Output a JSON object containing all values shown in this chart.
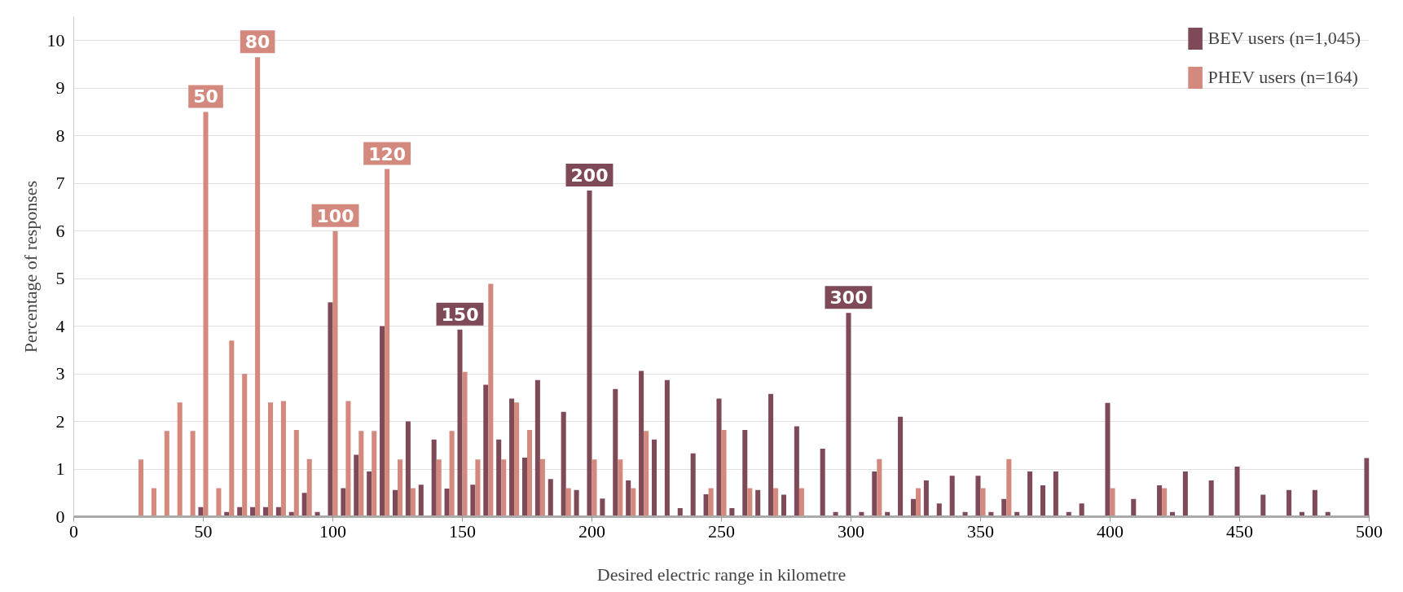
{
  "chart_data": {
    "type": "bar",
    "xlabel": "Desired electric range in kilometre",
    "ylabel": "Percentage of responses",
    "xlim": [
      0,
      500
    ],
    "xticks": [
      0,
      50,
      100,
      150,
      200,
      250,
      300,
      350,
      400,
      450,
      500
    ],
    "ylim": [
      0,
      10.5
    ],
    "yticks": [
      0,
      1,
      2,
      3,
      4,
      5,
      6,
      7,
      8,
      9,
      10
    ],
    "grid": "y",
    "legend": "top right",
    "series": [
      {
        "name": "BEV users (n=1,045)",
        "color": "#7f4a57",
        "x": [
          50,
          60,
          65,
          70,
          75,
          80,
          85,
          90,
          95,
          100,
          105,
          110,
          115,
          120,
          125,
          130,
          135,
          140,
          145,
          150,
          155,
          160,
          165,
          170,
          175,
          180,
          185,
          190,
          195,
          200,
          205,
          210,
          215,
          220,
          225,
          230,
          235,
          240,
          245,
          250,
          255,
          260,
          265,
          270,
          275,
          280,
          290,
          295,
          300,
          305,
          310,
          315,
          320,
          325,
          330,
          335,
          340,
          345,
          350,
          355,
          360,
          365,
          370,
          375,
          380,
          385,
          390,
          400,
          410,
          420,
          425,
          430,
          440,
          450,
          460,
          470,
          475,
          480,
          485,
          500
        ],
        "values": [
          0.2,
          0.1,
          0.2,
          0.2,
          0.2,
          0.2,
          0.1,
          0.5,
          0.1,
          4.5,
          0.6,
          1.3,
          0.95,
          4.0,
          0.56,
          2.0,
          0.67,
          1.62,
          0.59,
          3.93,
          0.67,
          2.77,
          1.62,
          2.48,
          1.24,
          2.87,
          0.79,
          2.2,
          0.56,
          6.85,
          0.38,
          2.68,
          0.76,
          3.06,
          1.62,
          2.87,
          0.18,
          1.33,
          0.47,
          2.48,
          0.18,
          1.82,
          0.56,
          2.58,
          0.46,
          1.9,
          1.43,
          0.1,
          4.28,
          0.1,
          0.95,
          0.1,
          2.1,
          0.37,
          0.76,
          0.28,
          0.86,
          0.1,
          0.86,
          0.1,
          0.37,
          0.1,
          0.95,
          0.66,
          0.95,
          0.1,
          0.28,
          2.39,
          0.37,
          0.66,
          0.1,
          0.95,
          0.76,
          1.05,
          0.46,
          0.56,
          0.1,
          0.56,
          0.1,
          1.23
        ]
      },
      {
        "name": "PHEV users (n=164)",
        "color": "#d4897f",
        "x": [
          25,
          30,
          35,
          40,
          45,
          50,
          55,
          60,
          65,
          70,
          75,
          80,
          85,
          90,
          100,
          105,
          110,
          115,
          120,
          125,
          130,
          140,
          145,
          150,
          155,
          160,
          165,
          170,
          175,
          180,
          190,
          200,
          210,
          215,
          220,
          245,
          250,
          260,
          270,
          280,
          310,
          325,
          350,
          360,
          400,
          420
        ],
        "values": [
          1.2,
          0.6,
          1.8,
          2.4,
          1.8,
          8.5,
          0.6,
          3.7,
          3.0,
          9.65,
          2.4,
          2.43,
          1.82,
          1.21,
          6.0,
          2.43,
          1.8,
          1.8,
          7.3,
          1.2,
          0.6,
          1.2,
          1.8,
          3.04,
          1.2,
          4.89,
          1.2,
          2.4,
          1.82,
          1.21,
          0.6,
          1.2,
          1.2,
          0.6,
          1.8,
          0.6,
          1.82,
          0.6,
          0.6,
          0.6,
          1.21,
          0.6,
          0.6,
          1.21,
          0.6,
          0.6
        ]
      }
    ],
    "annotations": [
      {
        "text": "50",
        "x": 50,
        "y": 8.5
      },
      {
        "text": "80",
        "x": 70,
        "y": 9.65
      },
      {
        "text": "100",
        "x": 100,
        "y": 6.0
      },
      {
        "text": "120",
        "x": 120,
        "y": 7.3
      },
      {
        "text": "150",
        "x": 150,
        "y": 3.93
      },
      {
        "text": "200",
        "x": 200,
        "y": 6.85
      },
      {
        "text": "300",
        "x": 300,
        "y": 4.28
      }
    ]
  }
}
